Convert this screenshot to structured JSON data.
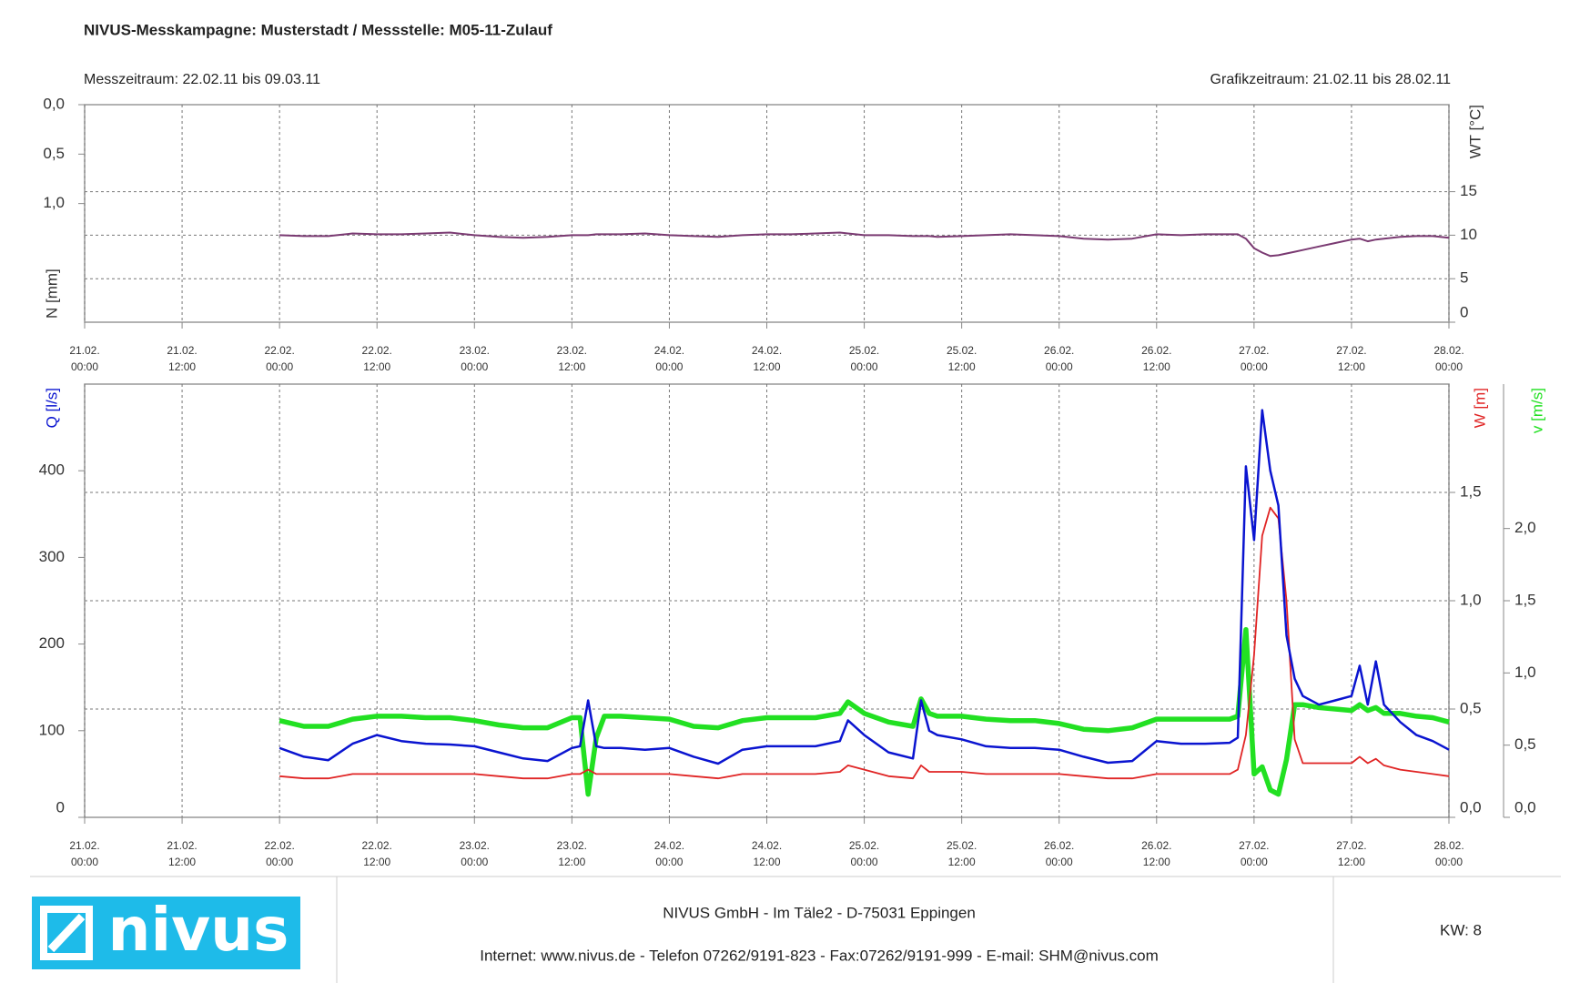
{
  "header": {
    "title": "NIVUS-Messkampagne: Musterstadt / Messstelle: M05-11-Zulauf",
    "period": "Messzeitraum: 22.02.11 bis 09.03.11",
    "graph_period": "Grafikzeitraum: 21.02.11 bis 28.02.11"
  },
  "chart_data": [
    {
      "type": "line",
      "x": [
        "22.02. 00:00",
        "22.02. 03:00",
        "22.02. 06:00",
        "22.02. 09:00",
        "22.02. 12:00",
        "22.02. 15:00",
        "22.02. 18:00",
        "22.02. 21:00",
        "23.02. 00:00",
        "23.02. 03:00",
        "23.02. 06:00",
        "23.02. 09:00",
        "23.02. 12:00",
        "23.02. 13:00",
        "23.02. 14:00",
        "23.02. 15:00",
        "23.02. 16:00",
        "23.02. 18:00",
        "23.02. 21:00",
        "24.02. 00:00",
        "24.02. 03:00",
        "24.02. 06:00",
        "24.02. 09:00",
        "24.02. 12:00",
        "24.02. 15:00",
        "24.02. 18:00",
        "24.02. 21:00",
        "24.02. 22:00",
        "25.02. 00:00",
        "25.02. 03:00",
        "25.02. 06:00",
        "25.02. 07:00",
        "25.02. 08:00",
        "25.02. 09:00",
        "25.02. 12:00",
        "25.02. 15:00",
        "25.02. 18:00",
        "25.02. 21:00",
        "26.02. 00:00",
        "26.02. 03:00",
        "26.02. 06:00",
        "26.02. 09:00",
        "26.02. 12:00",
        "26.02. 15:00",
        "26.02. 18:00",
        "26.02. 21:00",
        "26.02. 22:00",
        "26.02. 23:00",
        "27.02. 00:00",
        "27.02. 01:00",
        "27.02. 02:00",
        "27.02. 03:00",
        "27.02. 04:00",
        "27.02. 05:00",
        "27.02. 06:00",
        "27.02. 08:00",
        "27.02. 10:00",
        "27.02. 12:00",
        "27.02. 13:00",
        "27.02. 14:00",
        "27.02. 15:00",
        "27.02. 16:00",
        "27.02. 18:00",
        "27.02. 20:00",
        "27.02. 22:00",
        "28.02. 00:00"
      ],
      "xlim": [
        "21.02. 00:00",
        "28.02. 00:00"
      ],
      "xticks": [
        {
          "value": "21.02. 00:00",
          "label": [
            "21.02.",
            "00:00"
          ]
        },
        {
          "value": "21.02. 12:00",
          "label": [
            "21.02.",
            "12:00"
          ]
        },
        {
          "value": "22.02. 00:00",
          "label": [
            "22.02.",
            "00:00"
          ]
        },
        {
          "value": "22.02. 12:00",
          "label": [
            "22.02.",
            "12:00"
          ]
        },
        {
          "value": "23.02. 00:00",
          "label": [
            "23.02.",
            "00:00"
          ]
        },
        {
          "value": "23.02. 12:00",
          "label": [
            "23.02.",
            "12:00"
          ]
        },
        {
          "value": "24.02. 00:00",
          "label": [
            "24.02.",
            "00:00"
          ]
        },
        {
          "value": "24.02. 12:00",
          "label": [
            "24.02.",
            "12:00"
          ]
        },
        {
          "value": "25.02. 00:00",
          "label": [
            "25.02.",
            "00:00"
          ]
        },
        {
          "value": "25.02. 12:00",
          "label": [
            "25.02.",
            "12:00"
          ]
        },
        {
          "value": "26.02. 00:00",
          "label": [
            "26.02.",
            "00:00"
          ]
        },
        {
          "value": "26.02. 12:00",
          "label": [
            "26.02.",
            "12:00"
          ]
        },
        {
          "value": "27.02. 00:00",
          "label": [
            "27.02.",
            "00:00"
          ]
        },
        {
          "value": "27.02. 12:00",
          "label": [
            "27.02.",
            "12:00"
          ]
        },
        {
          "value": "28.02. 00:00",
          "label": [
            "28.02.",
            "00:00"
          ]
        }
      ],
      "ylabel": "N [mm]",
      "ylim": [
        2.2,
        0
      ],
      "yticks": [
        {
          "value": 0,
          "label": "0,0"
        },
        {
          "value": 0.5,
          "label": "0,5"
        },
        {
          "value": 1,
          "label": "1,0"
        }
      ],
      "y2label": "WT [°C]",
      "y2lim": [
        0,
        25
      ],
      "y2ticks": [
        0,
        5,
        10,
        15
      ],
      "grid": true,
      "series": [
        {
          "color": "#7a3a72",
          "axis": "y2",
          "values": [
            10.0,
            9.9,
            9.9,
            10.2,
            10.1,
            10.1,
            10.2,
            10.3,
            10.0,
            9.8,
            9.7,
            9.8,
            10.0,
            10.0,
            10.0,
            10.1,
            10.1,
            10.1,
            10.2,
            10.0,
            9.9,
            9.8,
            10.0,
            10.1,
            10.1,
            10.2,
            10.3,
            10.2,
            10.0,
            10.0,
            9.9,
            9.9,
            9.9,
            9.8,
            9.9,
            10.0,
            10.1,
            10.0,
            9.9,
            9.6,
            9.5,
            9.6,
            10.1,
            10.0,
            10.1,
            10.1,
            10.1,
            9.6,
            8.5,
            8.0,
            7.6,
            7.7,
            7.9,
            8.1,
            8.3,
            8.7,
            9.1,
            9.5,
            9.6,
            9.3,
            9.5,
            9.6,
            9.8,
            9.9,
            9.9,
            9.7
          ]
        }
      ]
    },
    {
      "type": "line",
      "x": [
        "22.02. 00:00",
        "22.02. 03:00",
        "22.02. 06:00",
        "22.02. 09:00",
        "22.02. 12:00",
        "22.02. 15:00",
        "22.02. 18:00",
        "22.02. 21:00",
        "23.02. 00:00",
        "23.02. 03:00",
        "23.02. 06:00",
        "23.02. 09:00",
        "23.02. 12:00",
        "23.02. 13:00",
        "23.02. 14:00",
        "23.02. 15:00",
        "23.02. 16:00",
        "23.02. 18:00",
        "23.02. 21:00",
        "24.02. 00:00",
        "24.02. 03:00",
        "24.02. 06:00",
        "24.02. 09:00",
        "24.02. 12:00",
        "24.02. 15:00",
        "24.02. 18:00",
        "24.02. 21:00",
        "24.02. 22:00",
        "25.02. 00:00",
        "25.02. 03:00",
        "25.02. 06:00",
        "25.02. 07:00",
        "25.02. 08:00",
        "25.02. 09:00",
        "25.02. 12:00",
        "25.02. 15:00",
        "25.02. 18:00",
        "25.02. 21:00",
        "26.02. 00:00",
        "26.02. 03:00",
        "26.02. 06:00",
        "26.02. 09:00",
        "26.02. 12:00",
        "26.02. 15:00",
        "26.02. 18:00",
        "26.02. 21:00",
        "26.02. 22:00",
        "26.02. 23:00",
        "27.02. 00:00",
        "27.02. 01:00",
        "27.02. 02:00",
        "27.02. 03:00",
        "27.02. 04:00",
        "27.02. 05:00",
        "27.02. 06:00",
        "27.02. 08:00",
        "27.02. 10:00",
        "27.02. 12:00",
        "27.02. 13:00",
        "27.02. 14:00",
        "27.02. 15:00",
        "27.02. 16:00",
        "27.02. 18:00",
        "27.02. 20:00",
        "27.02. 22:00",
        "28.02. 00:00"
      ],
      "xlim": [
        "21.02. 00:00",
        "28.02. 00:00"
      ],
      "xticks": [
        {
          "value": "21.02. 00:00",
          "label": [
            "21.02.",
            "00:00"
          ]
        },
        {
          "value": "21.02. 12:00",
          "label": [
            "21.02.",
            "12:00"
          ]
        },
        {
          "value": "22.02. 00:00",
          "label": [
            "22.02.",
            "00:00"
          ]
        },
        {
          "value": "22.02. 12:00",
          "label": [
            "22.02.",
            "12:00"
          ]
        },
        {
          "value": "23.02. 00:00",
          "label": [
            "23.02.",
            "00:00"
          ]
        },
        {
          "value": "23.02. 12:00",
          "label": [
            "23.02.",
            "12:00"
          ]
        },
        {
          "value": "24.02. 00:00",
          "label": [
            "24.02.",
            "00:00"
          ]
        },
        {
          "value": "24.02. 12:00",
          "label": [
            "24.02.",
            "12:00"
          ]
        },
        {
          "value": "25.02. 00:00",
          "label": [
            "25.02.",
            "00:00"
          ]
        },
        {
          "value": "25.02. 12:00",
          "label": [
            "25.02.",
            "12:00"
          ]
        },
        {
          "value": "26.02. 00:00",
          "label": [
            "26.02.",
            "00:00"
          ]
        },
        {
          "value": "26.02. 12:00",
          "label": [
            "26.02.",
            "12:00"
          ]
        },
        {
          "value": "27.02. 00:00",
          "label": [
            "27.02.",
            "00:00"
          ]
        },
        {
          "value": "27.02. 12:00",
          "label": [
            "27.02.",
            "12:00"
          ]
        },
        {
          "value": "28.02. 00:00",
          "label": [
            "28.02.",
            "00:00"
          ]
        }
      ],
      "ylabel": "Q [l/s]",
      "ylim": [
        0,
        500
      ],
      "yticks": [
        0,
        100,
        200,
        300,
        400
      ],
      "y2label": "W [m]",
      "y2lim": [
        0,
        2
      ],
      "y2ticks": [
        {
          "value": 0,
          "label": "0,0"
        },
        {
          "value": 0.5,
          "label": "0,5"
        },
        {
          "value": 1,
          "label": "1,0"
        },
        {
          "value": 1.5,
          "label": "1,5"
        }
      ],
      "y3label": "v [m/s]",
      "y3lim": [
        0,
        3
      ],
      "y3ticks": [
        {
          "value": 0,
          "label": "0,0"
        },
        {
          "value": 0.5,
          "label": "0,5"
        },
        {
          "value": 1,
          "label": "1,0"
        },
        {
          "value": 1.5,
          "label": "1,5"
        },
        {
          "value": 2,
          "label": "2,0"
        }
      ],
      "grid": true,
      "series": [
        {
          "color": "#0a14d0",
          "axis": "y",
          "values": [
            80,
            70,
            66,
            85,
            95,
            88,
            85,
            84,
            82,
            75,
            68,
            65,
            80,
            82,
            135,
            82,
            80,
            80,
            78,
            80,
            70,
            62,
            78,
            82,
            82,
            82,
            88,
            112,
            95,
            75,
            68,
            135,
            100,
            95,
            90,
            82,
            80,
            80,
            78,
            70,
            63,
            65,
            88,
            85,
            85,
            86,
            92,
            405,
            320,
            470,
            400,
            360,
            210,
            160,
            140,
            130,
            135,
            140,
            175,
            130,
            180,
            130,
            110,
            95,
            88,
            78
          ]
        },
        {
          "color": "#e02424",
          "axis": "y2",
          "values": [
            0.19,
            0.18,
            0.18,
            0.2,
            0.2,
            0.2,
            0.2,
            0.2,
            0.2,
            0.19,
            0.18,
            0.18,
            0.2,
            0.2,
            0.22,
            0.2,
            0.2,
            0.2,
            0.2,
            0.2,
            0.19,
            0.18,
            0.2,
            0.2,
            0.2,
            0.2,
            0.21,
            0.24,
            0.22,
            0.19,
            0.18,
            0.24,
            0.21,
            0.21,
            0.21,
            0.2,
            0.2,
            0.2,
            0.2,
            0.19,
            0.18,
            0.18,
            0.2,
            0.2,
            0.2,
            0.2,
            0.22,
            0.38,
            0.75,
            1.3,
            1.43,
            1.38,
            1.0,
            0.36,
            0.25,
            0.25,
            0.25,
            0.25,
            0.28,
            0.25,
            0.27,
            0.24,
            0.22,
            0.21,
            0.2,
            0.19
          ]
        },
        {
          "color": "#22e022",
          "axis": "y3",
          "values": [
            0.67,
            0.63,
            0.63,
            0.68,
            0.7,
            0.7,
            0.69,
            0.69,
            0.67,
            0.64,
            0.62,
            0.62,
            0.69,
            0.69,
            0.16,
            0.55,
            0.7,
            0.7,
            0.69,
            0.68,
            0.63,
            0.62,
            0.67,
            0.69,
            0.69,
            0.69,
            0.72,
            0.8,
            0.72,
            0.66,
            0.63,
            0.82,
            0.72,
            0.7,
            0.7,
            0.68,
            0.67,
            0.67,
            0.65,
            0.61,
            0.6,
            0.62,
            0.68,
            0.68,
            0.68,
            0.68,
            0.7,
            1.3,
            0.3,
            0.35,
            0.19,
            0.16,
            0.4,
            0.78,
            0.78,
            0.76,
            0.75,
            0.74,
            0.78,
            0.74,
            0.76,
            0.72,
            0.72,
            0.7,
            0.69,
            0.66
          ]
        }
      ]
    }
  ],
  "footer": {
    "logo": "nivus",
    "address": "NIVUS GmbH - Im Täle2 - D-75031 Eppingen",
    "contact": "Internet: www.nivus.de - Telefon 07262/9191-823 - Fax:07262/9191-999 - E-mail: SHM@nivus.com",
    "week": "KW: 8"
  }
}
